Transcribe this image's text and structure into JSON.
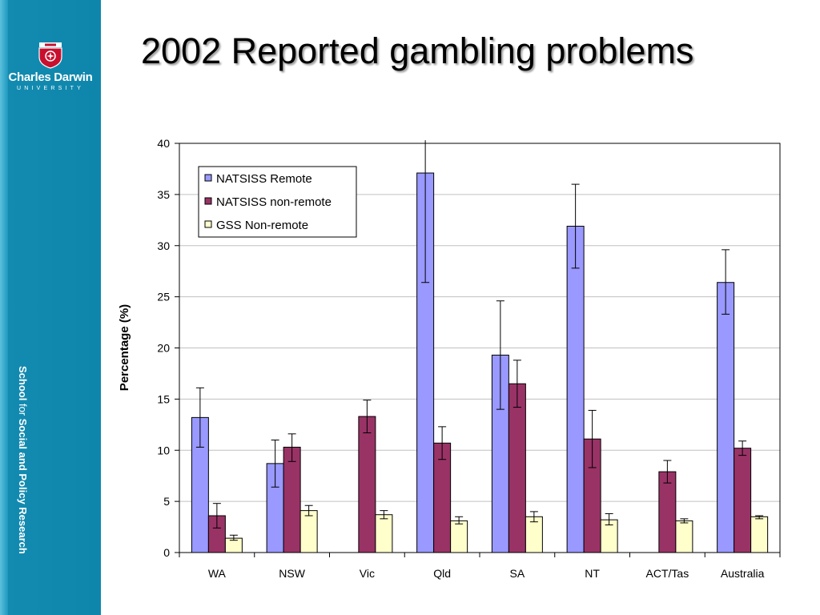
{
  "slide": {
    "title": "2002 Reported gambling problems",
    "logo_name": "Charles Darwin",
    "logo_sub": "UNIVERSITY",
    "side_text_1": "School ",
    "side_text_2": "for ",
    "side_text_3": "Social and Policy Research"
  },
  "colors": {
    "sidebar": "#0e86ac",
    "series": [
      "#9999ff",
      "#993366",
      "#ffffcc"
    ],
    "crest": "#c8102e"
  },
  "chart_data": {
    "type": "bar",
    "title": "",
    "xlabel": "",
    "ylabel": "Percentage (%)",
    "ylim": [
      0,
      40
    ],
    "yticks": [
      0,
      5,
      10,
      15,
      20,
      25,
      30,
      35,
      40
    ],
    "grid": true,
    "legend_position": "top-left",
    "categories": [
      "WA",
      "NSW",
      "Vic",
      "Qld",
      "SA",
      "NT",
      "ACT/Tas",
      "Australia"
    ],
    "series": [
      {
        "name": "NATSISS Remote",
        "values": [
          13.2,
          8.7,
          null,
          37.1,
          19.3,
          31.9,
          null,
          26.4
        ],
        "error_low": [
          10.3,
          6.4,
          null,
          26.4,
          14.0,
          27.8,
          null,
          23.3
        ],
        "error_high": [
          16.1,
          11.0,
          null,
          40.3,
          24.6,
          36.0,
          null,
          29.6
        ]
      },
      {
        "name": "NATSISS non-remote",
        "values": [
          3.6,
          10.3,
          13.3,
          10.7,
          16.5,
          11.1,
          7.9,
          10.2
        ],
        "error_low": [
          2.4,
          8.9,
          11.7,
          9.1,
          14.2,
          8.3,
          6.8,
          9.5
        ],
        "error_high": [
          4.8,
          11.6,
          14.9,
          12.3,
          18.8,
          13.9,
          9.0,
          10.9
        ]
      },
      {
        "name": "GSS Non-remote",
        "values": [
          1.4,
          4.1,
          3.7,
          3.1,
          3.5,
          3.2,
          3.1,
          3.5
        ],
        "error_low": [
          1.2,
          3.6,
          3.3,
          2.8,
          3.0,
          2.7,
          2.9,
          3.3
        ],
        "error_high": [
          1.7,
          4.6,
          4.1,
          3.5,
          4.0,
          3.8,
          3.3,
          3.6
        ]
      }
    ]
  }
}
